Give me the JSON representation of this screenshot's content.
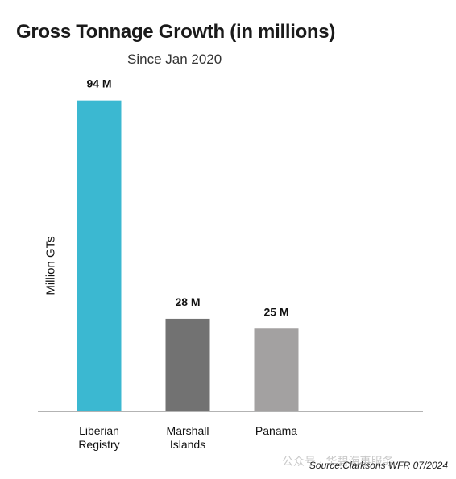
{
  "chart_data": {
    "type": "bar",
    "title": "Gross Tonnage Growth (in millions)",
    "subtitle": "Since Jan 2020",
    "ylabel": "Million GTs",
    "categories": [
      "Liberian\nRegistry",
      "Marshall\nIslands",
      "Panama"
    ],
    "values": [
      94,
      28,
      25
    ],
    "data_labels": [
      "94 M",
      "28 M",
      "25 M"
    ],
    "colors": [
      "#3bb8d1",
      "#727272",
      "#a3a1a1"
    ],
    "ylim": [
      0,
      100
    ],
    "grid": false,
    "legend": "none"
  },
  "source": "Source:Clarksons WFR 07/2024",
  "watermark": "公众号 · 华碧海事服务"
}
